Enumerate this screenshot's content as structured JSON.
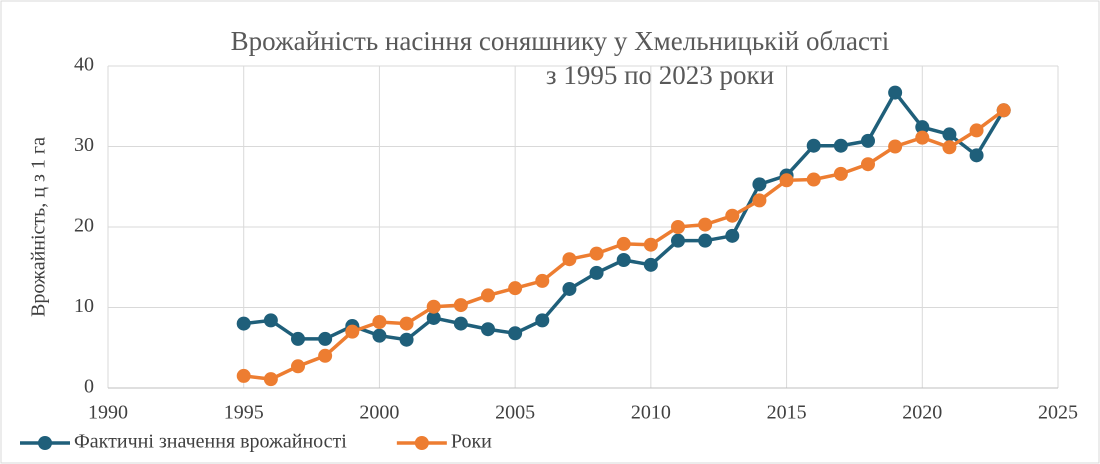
{
  "chart_data": {
    "type": "line",
    "title": "Врожайність насіння соняшнику у Хмельницькій області",
    "subtitle": "з 1995 по 2023 роки",
    "y_label": "Врожайність, ц з 1 га",
    "x": [
      1995,
      1996,
      1997,
      1998,
      1999,
      2000,
      2001,
      2002,
      2003,
      2004,
      2005,
      2006,
      2007,
      2008,
      2009,
      2010,
      2011,
      2012,
      2013,
      2014,
      2015,
      2016,
      2017,
      2018,
      2019,
      2020,
      2021,
      2022,
      2023
    ],
    "series": [
      {
        "name": "Фактичні значення врожайності",
        "color": "#1f5f7a",
        "values": [
          8.0,
          8.4,
          6.1,
          6.1,
          7.7,
          6.5,
          6.0,
          8.7,
          8.0,
          7.3,
          6.8,
          8.4,
          12.3,
          14.3,
          15.9,
          15.3,
          18.3,
          18.3,
          18.9,
          25.3,
          26.4,
          30.1,
          30.1,
          30.7,
          36.7,
          32.4,
          31.5,
          28.9,
          34.5
        ]
      },
      {
        "name": "Роки",
        "color": "#ed7d31",
        "values": [
          1.5,
          1.1,
          2.7,
          4.0,
          7.0,
          8.2,
          8.0,
          10.1,
          10.3,
          11.5,
          12.4,
          13.3,
          16.0,
          16.7,
          17.9,
          17.8,
          20.0,
          20.3,
          21.4,
          23.3,
          25.8,
          25.9,
          26.6,
          27.8,
          30.0,
          31.1,
          29.9,
          32.0,
          34.5
        ]
      }
    ],
    "xlim": [
      1990,
      2025
    ],
    "xticks": [
      1990,
      1995,
      2000,
      2005,
      2010,
      2015,
      2020,
      2025
    ],
    "ylim": [
      0,
      40
    ],
    "yticks": [
      0,
      10,
      20,
      30,
      40
    ],
    "grid": true,
    "legend": "bottom-left"
  }
}
